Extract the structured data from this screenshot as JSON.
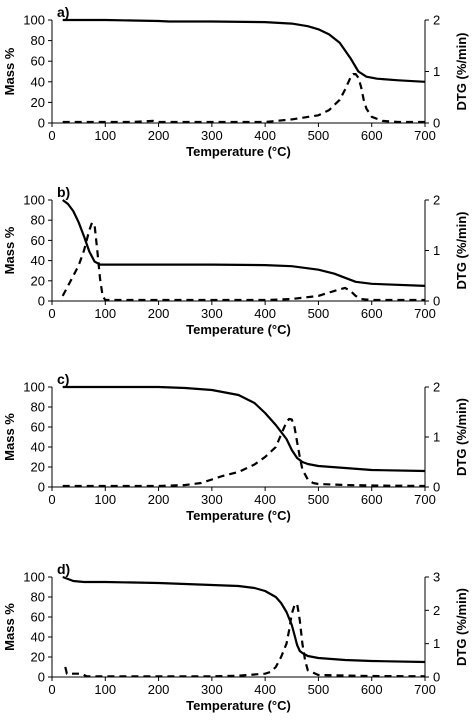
{
  "chart_data": [
    {
      "type": "line",
      "panel_label": "a)",
      "xlabel": "Temperature (°C)",
      "ylabel_left": "Mass %",
      "ylabel_right": "DTG (%/min)",
      "xlim": [
        0,
        700
      ],
      "ylim_left": [
        0,
        100
      ],
      "ylim_right": [
        0,
        2
      ],
      "xticks": [
        "0",
        "100",
        "200",
        "300",
        "400",
        "500",
        "600",
        "700"
      ],
      "yticks_left": [
        "0",
        "20",
        "40",
        "60",
        "80",
        "100"
      ],
      "yticks_right": [
        "0",
        "1",
        "2"
      ],
      "series": [
        {
          "axis": "left",
          "style": "solid",
          "x": [
            20,
            60,
            100,
            150,
            200,
            220,
            300,
            400,
            450,
            480,
            500,
            520,
            540,
            560,
            575,
            590,
            610,
            650,
            700
          ],
          "y": [
            100,
            100,
            100,
            99.5,
            99,
            98.5,
            98.5,
            98,
            96.5,
            94,
            91,
            86,
            78,
            63,
            50,
            45,
            43,
            41.5,
            40
          ]
        },
        {
          "axis": "right",
          "style": "dashed",
          "x": [
            20,
            150,
            190,
            200,
            220,
            250,
            400,
            450,
            500,
            520,
            540,
            550,
            560,
            565,
            570,
            575,
            580,
            585,
            590,
            600,
            620,
            650,
            700
          ],
          "y": [
            0.02,
            0.02,
            0.04,
            0.02,
            0.02,
            0.02,
            0.02,
            0.07,
            0.15,
            0.25,
            0.45,
            0.65,
            0.88,
            0.95,
            0.95,
            0.88,
            0.7,
            0.45,
            0.28,
            0.12,
            0.04,
            0.02,
            0.02
          ]
        }
      ]
    },
    {
      "type": "line",
      "panel_label": "b)",
      "xlabel": "Temperature (°C)",
      "ylabel_left": "Mass %",
      "ylabel_right": "DTG (%/min)",
      "xlim": [
        0,
        700
      ],
      "ylim_left": [
        0,
        100
      ],
      "ylim_right": [
        0,
        2
      ],
      "xticks": [
        "0",
        "100",
        "200",
        "300",
        "400",
        "500",
        "600",
        "700"
      ],
      "yticks_left": [
        "0",
        "20",
        "40",
        "60",
        "80",
        "100"
      ],
      "yticks_right": [
        "0",
        "1",
        "2"
      ],
      "series": [
        {
          "axis": "left",
          "style": "solid",
          "x": [
            20,
            30,
            40,
            50,
            60,
            70,
            80,
            90,
            100,
            200,
            300,
            400,
            450,
            500,
            530,
            550,
            570,
            600,
            700
          ],
          "y": [
            100,
            96,
            89,
            78,
            64,
            49,
            39,
            36,
            36,
            36,
            36,
            35.5,
            34.5,
            31,
            27,
            23,
            19,
            17,
            15
          ]
        },
        {
          "axis": "right",
          "style": "dashed",
          "x": [
            20,
            30,
            40,
            50,
            60,
            70,
            75,
            80,
            85,
            90,
            95,
            100,
            200,
            300,
            400,
            450,
            500,
            530,
            550,
            560,
            570,
            580,
            600,
            700
          ],
          "y": [
            0.1,
            0.3,
            0.5,
            0.7,
            1.0,
            1.4,
            1.55,
            1.5,
            1.0,
            0.45,
            0.1,
            0.02,
            0.02,
            0.02,
            0.02,
            0.04,
            0.1,
            0.2,
            0.26,
            0.2,
            0.1,
            0.04,
            0.02,
            0.02
          ]
        }
      ]
    },
    {
      "type": "line",
      "panel_label": "c)",
      "xlabel": "Temperature (°C)",
      "ylabel_left": "Mass %",
      "ylabel_right": "DTG (%/min)",
      "xlim": [
        0,
        700
      ],
      "ylim_left": [
        0,
        100
      ],
      "ylim_right": [
        0,
        2
      ],
      "xticks": [
        "0",
        "100",
        "200",
        "300",
        "400",
        "500",
        "600",
        "700"
      ],
      "yticks_left": [
        "0",
        "20",
        "40",
        "60",
        "80",
        "100"
      ],
      "yticks_right": [
        "0",
        "1",
        "2"
      ],
      "series": [
        {
          "axis": "left",
          "style": "solid",
          "x": [
            20,
            100,
            200,
            250,
            300,
            350,
            380,
            400,
            420,
            440,
            450,
            460,
            470,
            480,
            500,
            550,
            600,
            700
          ],
          "y": [
            100,
            100,
            100,
            99,
            97,
            92,
            84,
            74,
            62,
            48,
            37,
            29,
            25,
            23,
            21,
            19,
            17,
            16
          ]
        },
        {
          "axis": "right",
          "style": "dashed",
          "x": [
            20,
            200,
            250,
            280,
            300,
            320,
            350,
            380,
            400,
            420,
            430,
            440,
            445,
            450,
            455,
            460,
            465,
            470,
            480,
            490,
            500,
            550,
            600,
            700
          ],
          "y": [
            0.02,
            0.02,
            0.04,
            0.08,
            0.15,
            0.22,
            0.3,
            0.45,
            0.6,
            0.8,
            1.05,
            1.3,
            1.36,
            1.35,
            1.2,
            0.9,
            0.6,
            0.35,
            0.15,
            0.08,
            0.06,
            0.04,
            0.03,
            0.02
          ]
        }
      ]
    },
    {
      "type": "line",
      "panel_label": "d)",
      "xlabel": "Temperature (°C)",
      "ylabel_left": "Mass %",
      "ylabel_right": "DTG (%/min)",
      "xlim": [
        0,
        700
      ],
      "ylim_left": [
        0,
        100
      ],
      "ylim_right": [
        0,
        3
      ],
      "xticks": [
        "0",
        "100",
        "200",
        "300",
        "400",
        "500",
        "600",
        "700"
      ],
      "yticks_left": [
        "0",
        "20",
        "40",
        "60",
        "80",
        "100"
      ],
      "yticks_right": [
        "0",
        "1",
        "2",
        "3"
      ],
      "series": [
        {
          "axis": "left",
          "style": "solid",
          "x": [
            20,
            30,
            40,
            60,
            100,
            200,
            300,
            350,
            380,
            400,
            420,
            430,
            440,
            450,
            455,
            460,
            465,
            470,
            480,
            500,
            550,
            600,
            700
          ],
          "y": [
            100,
            98,
            96,
            95,
            95,
            94,
            92,
            91,
            89,
            86,
            80,
            74,
            65,
            52,
            42,
            32,
            26,
            24,
            21,
            19,
            17,
            16,
            15
          ]
        },
        {
          "axis": "right",
          "style": "dashed",
          "x": [
            25,
            28,
            40,
            55,
            65,
            100,
            200,
            300,
            350,
            400,
            410,
            420,
            430,
            440,
            445,
            450,
            455,
            460,
            465,
            470,
            475,
            480,
            500,
            600,
            700
          ],
          "y": [
            0.3,
            0.1,
            0.1,
            0.1,
            0.02,
            0.02,
            0.02,
            0.02,
            0.04,
            0.1,
            0.15,
            0.3,
            0.6,
            1.0,
            1.4,
            1.9,
            2.15,
            2.2,
            1.7,
            1.0,
            0.5,
            0.2,
            0.06,
            0.03,
            0.02
          ]
        }
      ]
    }
  ]
}
